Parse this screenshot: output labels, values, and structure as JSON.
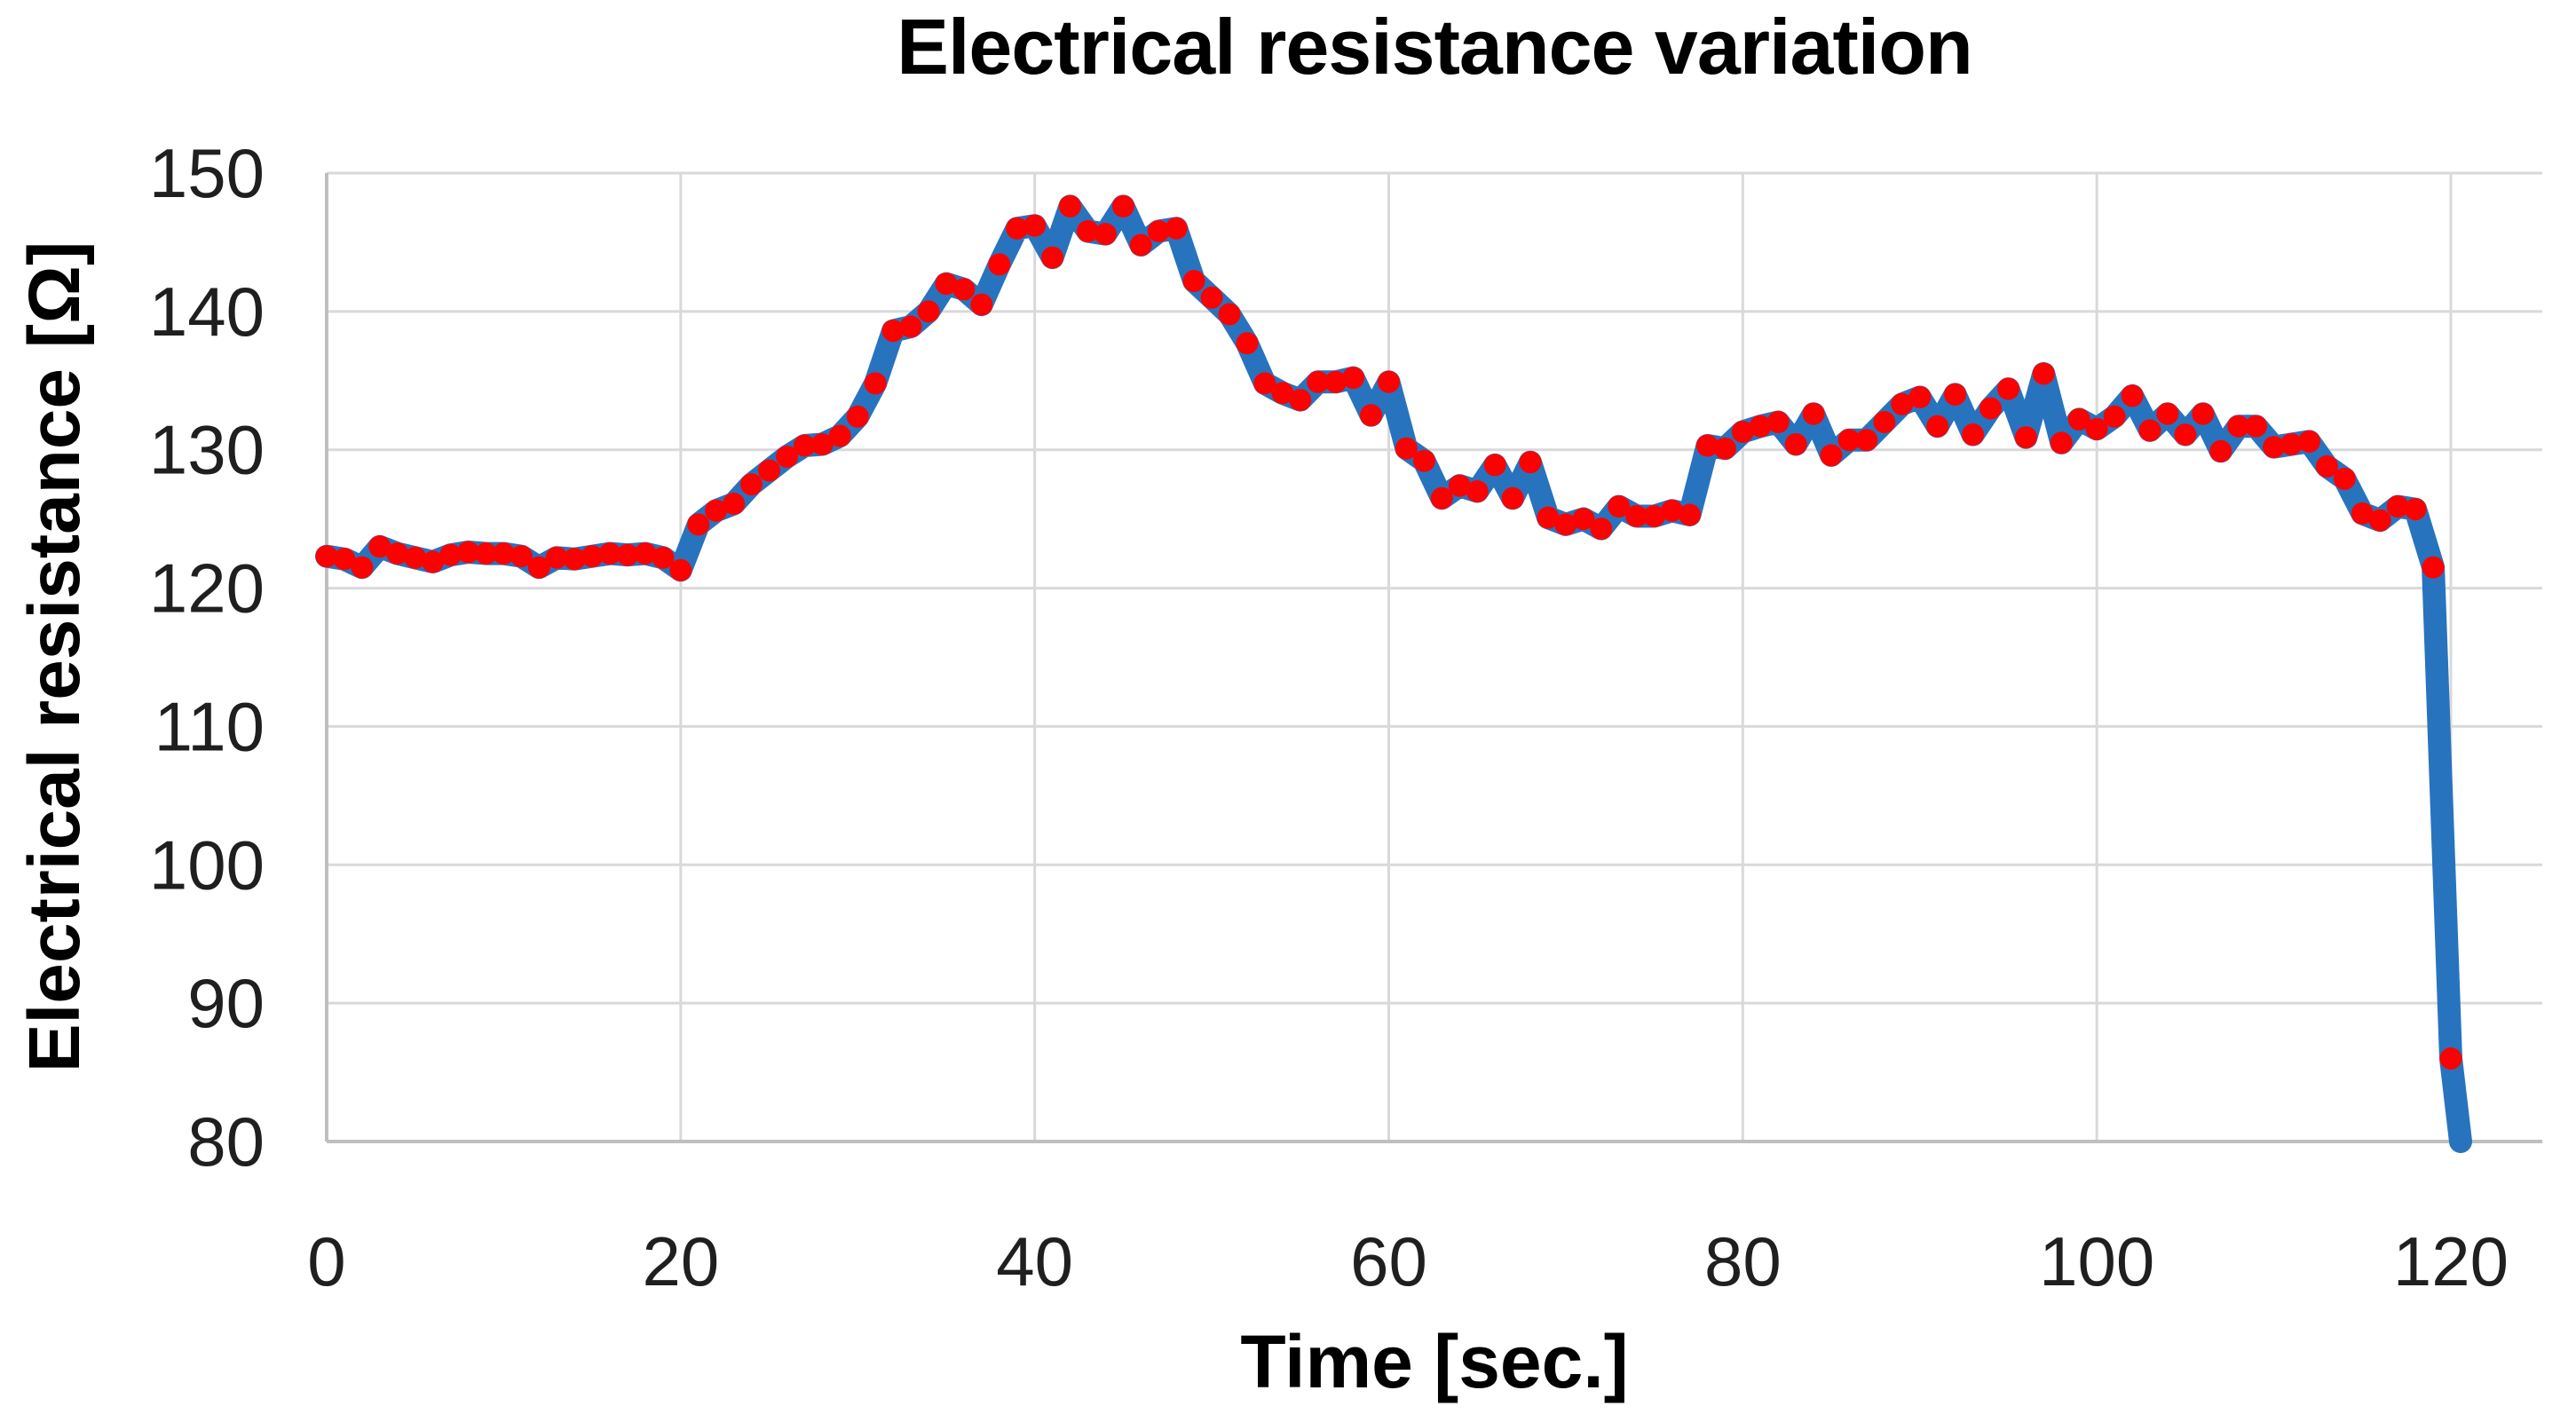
{
  "chart": {
    "title": "Electrical resistance variation",
    "x_axis_title": "Time [sec.]",
    "y_axis_title": "Electrical resistance [Ω]"
  },
  "colors": {
    "background": "#FFFFFF",
    "line": "#2873BE",
    "marker": "#FF0000",
    "gridline": "#D9D9D9",
    "axis_line": "#BFBFBF",
    "tick_text": "#1F1F1F",
    "title_text": "#000000"
  },
  "chart_data": {
    "type": "line",
    "title": "Electrical resistance variation",
    "xlabel": "Time [sec.]",
    "ylabel": "Electrical resistance [Ω]",
    "legend": false,
    "grid": true,
    "marker": "circle",
    "xlim": [
      0,
      125
    ],
    "ylim": [
      80,
      150
    ],
    "x_ticks": [
      0,
      20,
      40,
      60,
      80,
      100,
      120
    ],
    "y_ticks": [
      80,
      90,
      100,
      110,
      120,
      130,
      140,
      150
    ],
    "x_start": 0,
    "x_interval_sec": 1,
    "x": [
      0,
      1,
      2,
      3,
      4,
      5,
      6,
      7,
      8,
      9,
      10,
      11,
      12,
      13,
      14,
      15,
      16,
      17,
      18,
      19,
      20,
      21,
      22,
      23,
      24,
      25,
      26,
      27,
      28,
      29,
      30,
      31,
      32,
      33,
      34,
      35,
      36,
      37,
      38,
      39,
      40,
      41,
      42,
      43,
      44,
      45,
      46,
      47,
      48,
      49,
      50,
      51,
      52,
      53,
      54,
      55,
      56,
      57,
      58,
      59,
      60,
      61,
      62,
      63,
      64,
      65,
      66,
      67,
      68,
      69,
      70,
      71,
      72,
      73,
      74,
      75,
      76,
      77,
      78,
      79,
      80,
      81,
      82,
      83,
      84,
      85,
      86,
      87,
      88,
      89,
      90,
      91,
      92,
      93,
      94,
      95,
      96,
      97,
      98,
      99,
      100,
      101,
      102,
      103,
      104,
      105,
      106,
      107,
      108,
      109,
      110,
      111,
      112,
      113,
      114,
      115,
      116,
      117,
      118,
      119,
      120
    ],
    "values": [
      122.3,
      122.1,
      121.5,
      123.0,
      122.5,
      122.2,
      121.9,
      122.4,
      122.6,
      122.5,
      122.5,
      122.3,
      121.5,
      122.2,
      122.1,
      122.3,
      122.5,
      122.4,
      122.5,
      122.2,
      121.3,
      124.6,
      125.6,
      126.1,
      127.5,
      128.5,
      129.5,
      130.3,
      130.4,
      131.0,
      132.4,
      134.8,
      138.6,
      138.9,
      140.0,
      142.0,
      141.6,
      140.5,
      143.4,
      146.0,
      146.2,
      143.9,
      147.6,
      145.8,
      145.6,
      147.6,
      144.8,
      145.8,
      146.0,
      142.2,
      141.0,
      139.8,
      137.7,
      134.8,
      134.1,
      133.6,
      134.9,
      134.9,
      135.2,
      132.5,
      134.9,
      130.1,
      129.2,
      126.5,
      127.4,
      127.0,
      128.9,
      126.5,
      129.1,
      125.1,
      124.6,
      125.0,
      124.3,
      125.9,
      125.2,
      125.2,
      125.6,
      125.3,
      130.3,
      130.1,
      131.3,
      131.7,
      132.0,
      130.4,
      132.6,
      129.6,
      130.7,
      130.7,
      132.0,
      133.3,
      133.8,
      131.7,
      134.0,
      131.1,
      133.0,
      134.4,
      130.9,
      135.5,
      130.5,
      132.2,
      131.5,
      132.4,
      133.9,
      131.4,
      132.6,
      131.1,
      132.6,
      129.9,
      131.7,
      131.7,
      130.2,
      130.4,
      130.6,
      128.8,
      127.9,
      125.4,
      124.9,
      125.9,
      125.7,
      121.5,
      86.0
    ],
    "line_exit": {
      "x": 120.55,
      "value": 80
    }
  }
}
